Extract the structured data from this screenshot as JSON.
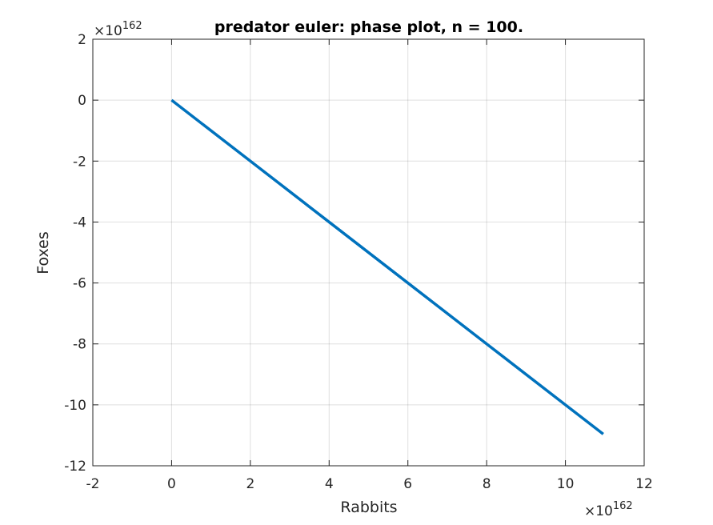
{
  "chart_data": {
    "type": "line",
    "title": "predator euler: phase plot, n = 100.",
    "xlabel": "Rabbits",
    "ylabel": "Foxes",
    "x_exponent": {
      "base": "×10",
      "power": "162"
    },
    "y_exponent": {
      "base": "×10",
      "power": "162"
    },
    "xlim": [
      -2,
      12
    ],
    "ylim": [
      -12,
      2
    ],
    "xticks": [
      -2,
      0,
      2,
      4,
      6,
      8,
      10,
      12
    ],
    "yticks": [
      -12,
      -10,
      -8,
      -6,
      -4,
      -2,
      0,
      2
    ],
    "grid": true,
    "series": [
      {
        "color": "#0072BD",
        "x": [
          0,
          2,
          4,
          6,
          8,
          10,
          10.96
        ],
        "y": [
          0,
          -2,
          -4,
          -6,
          -8,
          -10,
          -10.96
        ]
      }
    ]
  }
}
